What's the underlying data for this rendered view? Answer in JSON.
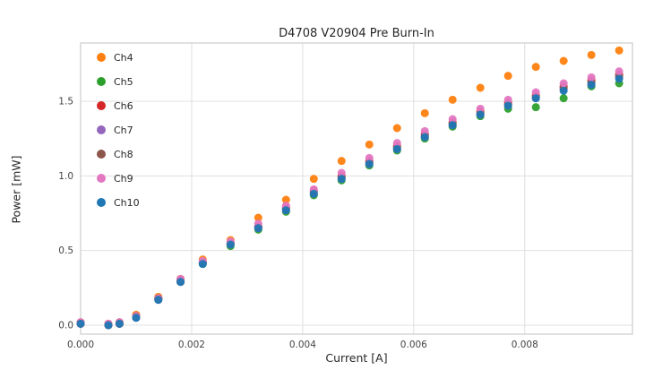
{
  "chart_data": {
    "type": "scatter",
    "title": "D4708 V20904 Pre Burn-In",
    "xlabel": "Current [A]",
    "ylabel": "Power [mW]",
    "xlim": [
      0,
      0.00994
    ],
    "ylim": [
      -0.06,
      1.89
    ],
    "xtick_values": [
      0.0,
      0.002,
      0.004,
      0.006,
      0.008
    ],
    "xtick_labels": [
      "0.000",
      "0.002",
      "0.004",
      "0.006",
      "0.008"
    ],
    "ytick_values": [
      0.0,
      0.5,
      1.0,
      1.5
    ],
    "ytick_labels": [
      "0.0",
      "0.5",
      "1.0",
      "1.5"
    ],
    "grid": true,
    "legend_position": "upper-left",
    "x": [
      0.0,
      0.0005,
      0.0007,
      0.001,
      0.0014,
      0.0018,
      0.0022,
      0.0027,
      0.0032,
      0.0037,
      0.0042,
      0.0047,
      0.0052,
      0.0057,
      0.0062,
      0.0067,
      0.0072,
      0.0077,
      0.0082,
      0.0087,
      0.0092,
      0.0097
    ],
    "series": [
      {
        "name": "Ch4",
        "color": "#ff7f0e",
        "values": [
          0.02,
          0.01,
          0.02,
          0.07,
          0.19,
          0.31,
          0.44,
          0.57,
          0.72,
          0.84,
          0.98,
          1.1,
          1.21,
          1.32,
          1.42,
          1.51,
          1.59,
          1.67,
          1.73,
          1.77,
          1.81,
          1.84
        ]
      },
      {
        "name": "Ch5",
        "color": "#2ca02c",
        "values": [
          0.01,
          0.0,
          0.01,
          0.05,
          0.17,
          0.29,
          0.41,
          0.53,
          0.64,
          0.76,
          0.87,
          0.97,
          1.07,
          1.17,
          1.25,
          1.33,
          1.4,
          1.45,
          1.46,
          1.52,
          1.6,
          1.62
        ]
      },
      {
        "name": "Ch6",
        "color": "#d62728",
        "values": [
          0.01,
          0.0,
          0.01,
          0.06,
          0.18,
          0.3,
          0.42,
          0.55,
          0.66,
          0.79,
          0.9,
          1.0,
          1.1,
          1.2,
          1.28,
          1.36,
          1.43,
          1.49,
          1.54,
          1.6,
          1.64,
          1.68
        ]
      },
      {
        "name": "Ch7",
        "color": "#9467bd",
        "values": [
          0.01,
          0.0,
          0.01,
          0.05,
          0.17,
          0.29,
          0.42,
          0.54,
          0.65,
          0.77,
          0.88,
          0.98,
          1.08,
          1.18,
          1.26,
          1.34,
          1.41,
          1.47,
          1.52,
          1.58,
          1.62,
          1.66
        ]
      },
      {
        "name": "Ch8",
        "color": "#8c564b",
        "values": [
          0.01,
          0.0,
          0.01,
          0.06,
          0.18,
          0.3,
          0.42,
          0.55,
          0.66,
          0.78,
          0.89,
          0.99,
          1.09,
          1.19,
          1.27,
          1.35,
          1.42,
          1.48,
          1.53,
          1.59,
          1.63,
          1.67
        ]
      },
      {
        "name": "Ch9",
        "color": "#e377c2",
        "values": [
          0.02,
          0.01,
          0.02,
          0.06,
          0.18,
          0.31,
          0.43,
          0.56,
          0.68,
          0.8,
          0.91,
          1.02,
          1.12,
          1.22,
          1.3,
          1.38,
          1.45,
          1.51,
          1.56,
          1.62,
          1.66,
          1.7
        ]
      },
      {
        "name": "Ch10",
        "color": "#1f77b4",
        "values": [
          0.01,
          0.0,
          0.01,
          0.05,
          0.17,
          0.29,
          0.41,
          0.54,
          0.65,
          0.77,
          0.88,
          0.98,
          1.08,
          1.18,
          1.26,
          1.34,
          1.41,
          1.47,
          1.52,
          1.57,
          1.61,
          1.65
        ]
      }
    ],
    "style": {
      "grid_color": "#e0e0e0",
      "border_color": "#cccccc",
      "tick_color": "#444444",
      "text_color": "#262626",
      "marker_radius": 4.5
    }
  }
}
